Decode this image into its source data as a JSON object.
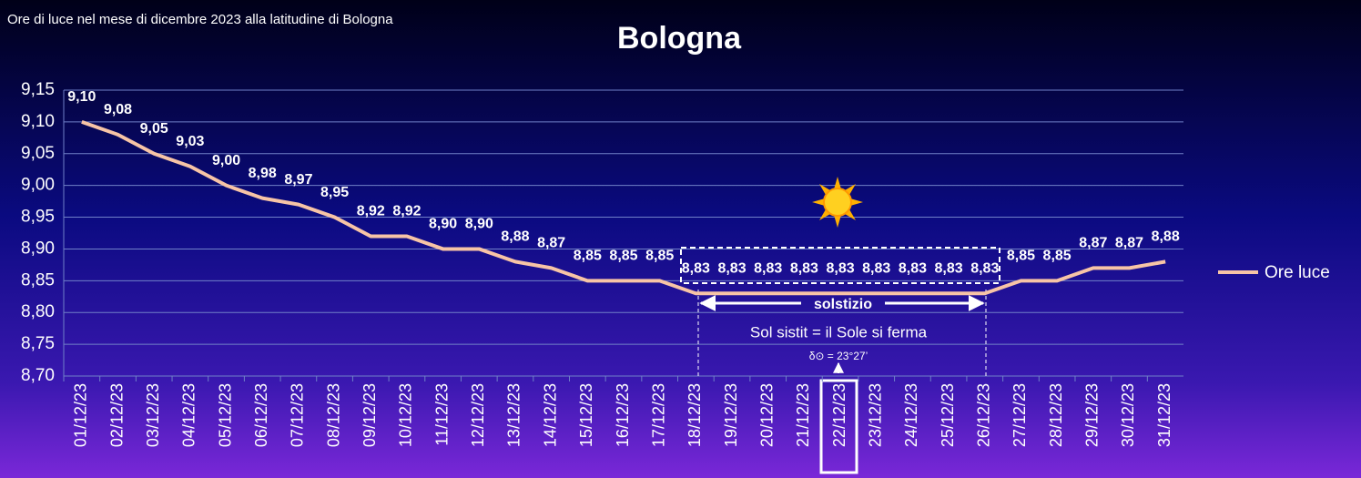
{
  "chart_data": {
    "type": "line",
    "subtitle": "Ore di luce nel mese di dicembre 2023 alla latitudine  di Bologna",
    "title": "Bologna",
    "categories": [
      "01/12/23",
      "02/12/23",
      "03/12/23",
      "04/12/23",
      "05/12/23",
      "06/12/23",
      "07/12/23",
      "08/12/23",
      "09/12/23",
      "10/12/23",
      "11/12/23",
      "12/12/23",
      "13/12/23",
      "14/12/23",
      "15/12/23",
      "16/12/23",
      "17/12/23",
      "18/12/23",
      "19/12/23",
      "20/12/23",
      "21/12/23",
      "22/12/23",
      "23/12/23",
      "24/12/23",
      "25/12/23",
      "26/12/23",
      "27/12/23",
      "28/12/23",
      "29/12/23",
      "30/12/23",
      "31/12/23"
    ],
    "series": [
      {
        "name": "Ore luce",
        "color": "#f7c4a6",
        "values": [
          9.1,
          9.08,
          9.05,
          9.03,
          9.0,
          8.98,
          8.97,
          8.95,
          8.92,
          8.92,
          8.9,
          8.9,
          8.88,
          8.87,
          8.85,
          8.85,
          8.85,
          8.83,
          8.83,
          8.83,
          8.83,
          8.83,
          8.83,
          8.83,
          8.83,
          8.83,
          8.85,
          8.85,
          8.87,
          8.87,
          8.88
        ],
        "value_labels": [
          "9,10",
          "9,08",
          "9,05",
          "9,03",
          "9,00",
          "8,98",
          "8,97",
          "8,95",
          "8,92",
          "8,92",
          "8,90",
          "8,90",
          "8,88",
          "8,87",
          "8,85",
          "8,85",
          "8,85",
          "8,83",
          "8,83",
          "8,83",
          "8,83",
          "8,83",
          "8,83",
          "8,83",
          "8,83",
          "8,83",
          "8,85",
          "8,85",
          "8,87",
          "8,87",
          "8,88"
        ]
      }
    ],
    "ylim": [
      8.7,
      9.15
    ],
    "yticks": [
      {
        "value": 8.7,
        "label": "8,70"
      },
      {
        "value": 8.75,
        "label": "8,75"
      },
      {
        "value": 8.8,
        "label": "8,80"
      },
      {
        "value": 8.85,
        "label": "8,85"
      },
      {
        "value": 8.9,
        "label": "8,90"
      },
      {
        "value": 8.95,
        "label": "8,95"
      },
      {
        "value": 9.0,
        "label": "9,00"
      },
      {
        "value": 9.05,
        "label": "9,05"
      },
      {
        "value": 9.1,
        "label": "9,10"
      },
      {
        "value": 9.15,
        "label": "9,15"
      }
    ],
    "grid": true,
    "legend": "right",
    "annotations": [
      "solstizio",
      "Sol sistit = il Sole si ferma",
      "δ⊙ = 23°27’"
    ]
  }
}
